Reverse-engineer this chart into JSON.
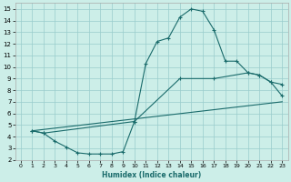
{
  "xlabel": "Humidex (Indice chaleur)",
  "xlim": [
    -0.5,
    23.5
  ],
  "ylim": [
    2,
    15.5
  ],
  "xticks": [
    0,
    1,
    2,
    3,
    4,
    5,
    6,
    7,
    8,
    9,
    10,
    11,
    12,
    13,
    14,
    15,
    16,
    17,
    18,
    19,
    20,
    21,
    22,
    23
  ],
  "yticks": [
    2,
    3,
    4,
    5,
    6,
    7,
    8,
    9,
    10,
    11,
    12,
    13,
    14,
    15
  ],
  "bg_color": "#cceee8",
  "line_color": "#1a6b6b",
  "grid_color": "#99cccc",
  "curve1_x": [
    1,
    2,
    3,
    4,
    5,
    6,
    7,
    8,
    9,
    10,
    11,
    12,
    13,
    14,
    15,
    16,
    17,
    18,
    19,
    20,
    21,
    22,
    23
  ],
  "curve1_y": [
    4.5,
    4.3,
    3.6,
    3.1,
    2.6,
    2.5,
    2.5,
    2.5,
    2.7,
    5.3,
    10.3,
    12.2,
    12.5,
    14.3,
    15.0,
    14.8,
    13.2,
    10.5,
    10.5,
    9.5,
    9.3,
    8.7,
    7.5
  ],
  "curve2_x": [
    1,
    2,
    10,
    14,
    17,
    20,
    21,
    22,
    23
  ],
  "curve2_y": [
    4.5,
    4.3,
    5.3,
    9.0,
    9.0,
    9.5,
    9.3,
    8.7,
    8.5
  ],
  "curve3_x": [
    1,
    23
  ],
  "curve3_y": [
    4.5,
    7.0
  ]
}
